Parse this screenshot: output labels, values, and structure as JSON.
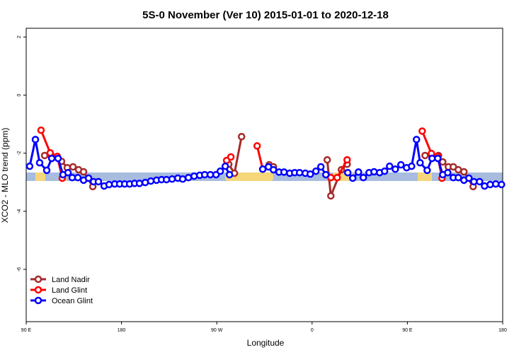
{
  "chart_data": {
    "type": "line",
    "title": "5S-0 November (Ver 10)   2015-01-01 to 2020-12-18",
    "x_label": "Longitude",
    "y_label": "XCO2 - MLO trend (ppm)",
    "xlim": [
      90,
      540
    ],
    "ylim": [
      -7.8,
      2.3
    ],
    "xticks": [
      {
        "value": 90,
        "label": "90 E"
      },
      180,
      {
        "value": 270,
        "label": "90 W"
      },
      {
        "value": 360,
        "label": "0"
      },
      {
        "value": 450,
        "label": "90 E"
      },
      {
        "value": 540,
        "label": "180"
      }
    ],
    "yticks": [
      2,
      0,
      -2,
      -4,
      -6
    ],
    "legend": "bottom-left",
    "series": [
      {
        "name": "Land Nadir",
        "color": "#a52a2a",
        "x": [
          107.4,
          123.4,
          128.8,
          134.2,
          139.5,
          144.2,
          152.9,
          null,
          281.3,
          286.7,
          293.4,
          null,
          319.5,
          323.5,
          null,
          374.3,
          377.7,
          387.7,
          393.1,
          null,
          466.7,
          479.4,
          483.4,
          488.7,
          493.4,
          498.1,
          503.4,
          512.1
        ],
        "values": [
          -2.08,
          -2.28,
          -2.5,
          -2.47,
          -2.57,
          -2.64,
          -3.15,
          null,
          -2.38,
          -2.69,
          -1.43,
          null,
          -2.4,
          -2.47,
          null,
          -2.23,
          -3.47,
          -2.57,
          -2.38,
          null,
          -2.08,
          -2.08,
          -2.3,
          -2.47,
          -2.47,
          -2.57,
          -2.64,
          -3.15
        ]
      },
      {
        "name": "Land Glint",
        "color": "#ff0000",
        "x": [
          104.0,
          112.7,
          119.4,
          124.1,
          null,
          279.3,
          283.3,
          null,
          308.1,
          313.4,
          null,
          377.7,
          383.7,
          393.1,
          null,
          464.0,
          472.7,
          478.7,
          482.7
        ],
        "values": [
          -1.21,
          -1.99,
          -2.11,
          -2.86,
          null,
          -2.25,
          -2.13,
          null,
          -1.75,
          -2.55,
          null,
          -2.84,
          -2.84,
          -2.23,
          null,
          -1.24,
          -2.01,
          -2.11,
          -2.86
        ]
      },
      {
        "name": "Ocean Glint",
        "color": "#0000ff",
        "x": [
          93.3,
          98.7,
          102.7,
          109.4,
          114.1,
          120.1,
          124.8,
          129.5,
          133.5,
          138.8,
          144.2,
          148.9,
          153.6,
          158.2,
          163.6,
          168.3,
          173.6,
          178.3,
          183.0,
          187.7,
          192.4,
          197.0,
          202.4,
          207.7,
          213.1,
          217.8,
          222.5,
          227.8,
          233.2,
          237.8,
          243.2,
          248.6,
          253.9,
          258.6,
          263.9,
          269.3,
          273.3,
          278.0,
          282.0,
          null,
          313.4,
          318.8,
          323.5,
          328.8,
          333.5,
          338.9,
          343.6,
          348.2,
          353.6,
          358.3,
          363.6,
          368.3,
          373.0,
          null,
          393.7,
          398.4,
          403.8,
          408.4,
          413.8,
          418.5,
          423.8,
          428.5,
          433.2,
          438.6,
          443.9,
          449.3,
          454.0,
          458.6,
          462.0,
          468.7,
          473.3,
          478.7,
          483.4,
          488.1,
          493.4,
          498.1,
          503.4,
          508.1,
          512.8,
          518.2,
          522.9,
          528.2,
          533.5,
          538.9
        ],
        "values": [
          -2.45,
          -1.53,
          -2.33,
          -2.59,
          -2.18,
          -2.18,
          -2.74,
          -2.67,
          -2.84,
          -2.84,
          -2.93,
          -2.86,
          -2.98,
          -2.98,
          -3.13,
          -3.08,
          -3.06,
          -3.06,
          -3.06,
          -3.06,
          -3.04,
          -3.04,
          -3.01,
          -2.96,
          -2.93,
          -2.91,
          -2.91,
          -2.89,
          -2.86,
          -2.89,
          -2.84,
          -2.79,
          -2.76,
          -2.74,
          -2.74,
          -2.74,
          -2.62,
          -2.45,
          -2.74,
          null,
          -2.55,
          -2.47,
          -2.57,
          -2.65,
          -2.65,
          -2.69,
          -2.67,
          -2.67,
          -2.69,
          -2.72,
          -2.62,
          -2.47,
          -2.74,
          null,
          -2.67,
          -2.86,
          -2.65,
          -2.84,
          -2.67,
          -2.64,
          -2.67,
          -2.62,
          -2.45,
          -2.55,
          -2.4,
          -2.5,
          -2.45,
          -1.53,
          -2.33,
          -2.59,
          -2.18,
          -2.18,
          -2.74,
          -2.67,
          -2.84,
          -2.84,
          -2.93,
          -2.86,
          -2.98,
          -2.98,
          -3.13,
          -3.08,
          -3.06,
          -3.08
        ]
      }
    ]
  }
}
